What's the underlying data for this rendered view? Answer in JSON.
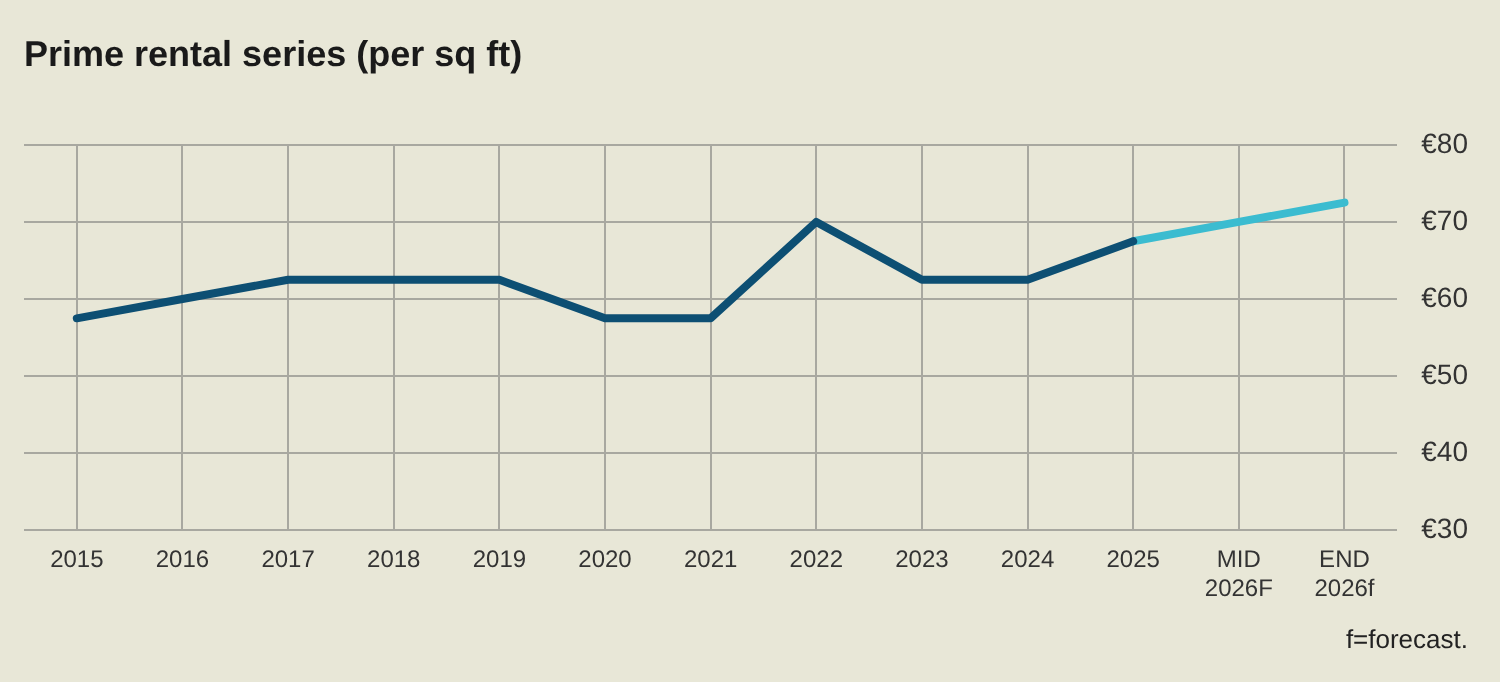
{
  "chart_data": {
    "type": "line",
    "title": "Prime rental series (per sq ft)",
    "categories": [
      "2015",
      "2016",
      "2017",
      "2018",
      "2019",
      "2020",
      "2021",
      "2022",
      "2023",
      "2024",
      "2025",
      "MID 2026F",
      "END 2026f"
    ],
    "series": [
      {
        "color": "#0d4f73",
        "values": [
          57.5,
          60,
          62.5,
          62.5,
          62.5,
          57.5,
          57.5,
          70,
          62.5,
          62.5,
          67.5,
          null,
          null
        ]
      },
      {
        "color": "#3bbcd0",
        "values": [
          null,
          null,
          null,
          null,
          null,
          null,
          null,
          null,
          null,
          null,
          67.5,
          70,
          72.5
        ]
      }
    ],
    "ylim": [
      30,
      80
    ],
    "yticks": [
      {
        "value": 30,
        "label": "€30"
      },
      {
        "value": 40,
        "label": "€40"
      },
      {
        "value": 50,
        "label": "€50"
      },
      {
        "value": 60,
        "label": "€60"
      },
      {
        "value": 70,
        "label": "€70"
      },
      {
        "value": 80,
        "label": "€80"
      }
    ],
    "grid": true,
    "marker": "none",
    "line_style": "solid",
    "annotations": [
      "f=forecast."
    ]
  }
}
